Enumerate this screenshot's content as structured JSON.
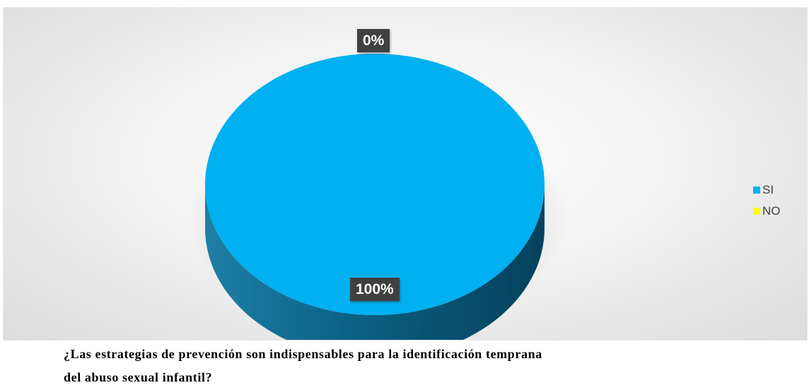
{
  "chart_data": {
    "type": "pie",
    "categories": [
      "SI",
      "NO"
    ],
    "values": [
      100,
      0
    ],
    "value_labels": [
      "100%",
      "0%"
    ],
    "colors": [
      "#00B0F0",
      "#FFFF00"
    ],
    "three_d": true,
    "legend_position": "right"
  },
  "caption": {
    "line1": "¿Las estrategias de prevención son indispensables para la identificación temprana",
    "line2": "del abuso sexual infantil?"
  }
}
